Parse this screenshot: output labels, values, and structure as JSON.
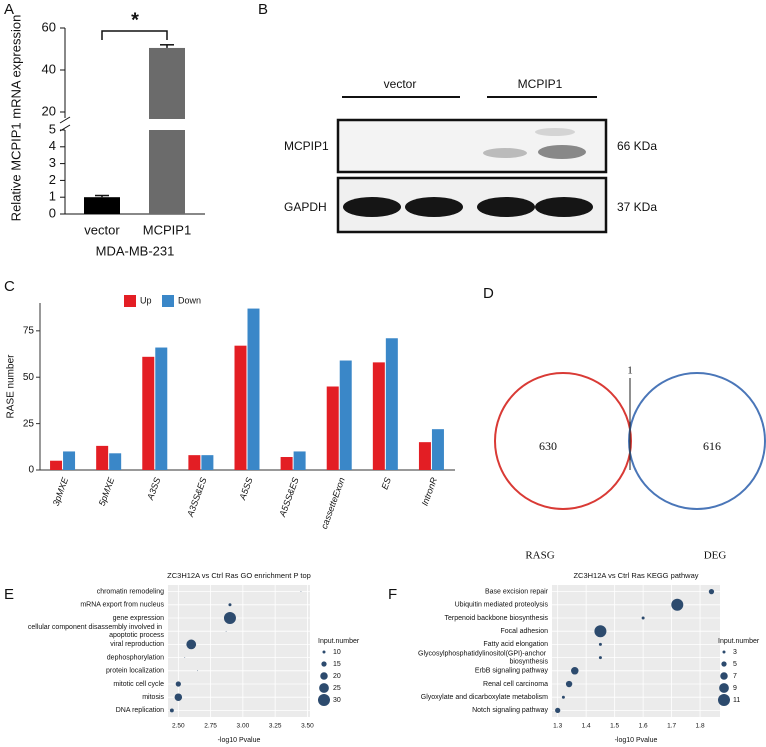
{
  "panel_labels": [
    "A",
    "B",
    "C",
    "D",
    "E",
    "F"
  ],
  "chart_data": [
    {
      "type": "bar",
      "ylabel": "Relative MCPIP1 mRNA expression",
      "xlabel": "MDA-MB-231",
      "categories": [
        "vector",
        "MCPIP1"
      ],
      "values": [
        1,
        50.5
      ],
      "errors": [
        0.1,
        1.5
      ],
      "colors": [
        "#000000",
        "#6b6b6b"
      ],
      "ylim": [
        0,
        60
      ],
      "axis_break": [
        5,
        20
      ],
      "yticks": [
        0,
        1,
        2,
        3,
        4,
        5,
        20,
        40,
        60
      ],
      "annotation": "*"
    },
    {
      "type": "grouped_bar",
      "ylabel": "RASE number",
      "categories": [
        "3pMXE",
        "5pMXE",
        "A3SS",
        "A3SS&ES",
        "A5SS",
        "A5SS&ES",
        "cassetteExon",
        "ES",
        "IntronR"
      ],
      "series": [
        {
          "name": "Up",
          "color": "#e31e24",
          "values": [
            5,
            13,
            61,
            8,
            67,
            7,
            45,
            58,
            15
          ]
        },
        {
          "name": "Down",
          "color": "#3a87c8",
          "values": [
            10,
            9,
            66,
            8,
            87,
            10,
            59,
            71,
            22
          ]
        }
      ],
      "ylim": [
        0,
        90
      ],
      "yticks": [
        0,
        25,
        50,
        75
      ]
    },
    {
      "type": "venn",
      "sets": [
        {
          "name": "RASG",
          "color": "#d93a35",
          "value": 630
        },
        {
          "name": "DEG",
          "color": "#4a76b8",
          "value": 616
        }
      ],
      "overlap": 1
    },
    {
      "type": "bubble",
      "title": "ZC3H12A vs Ctrl Ras GO enrichment P top",
      "xlabel": "-log10 Pvalue",
      "categories": [
        "chromatin remodeling",
        "mRNA export from nucleus",
        "gene expression",
        "cellular component disassembly involved in apoptotic process",
        "viral reproduction",
        "dephosphorylation",
        "protein localization",
        "mitotic cell cycle",
        "mitosis",
        "DNA replication"
      ],
      "x": [
        3.45,
        2.9,
        2.9,
        2.87,
        2.6,
        2.55,
        2.65,
        2.5,
        2.5,
        2.45
      ],
      "sizes": [
        5,
        10,
        30,
        5,
        25,
        5,
        5,
        15,
        20,
        12
      ],
      "label_colors": [
        "#333333",
        "#333333",
        "#333333",
        "#333333",
        "#333333",
        "#333333",
        "#333333",
        "#8b2a8b",
        "#8b2a8b",
        "#8b2a8b"
      ],
      "color": "#2d4b6e",
      "xlim": [
        2.42,
        3.52
      ],
      "xticks": [
        {
          "value": 2.5,
          "label": "2.50"
        },
        {
          "value": 2.75,
          "label": "2.75"
        },
        {
          "value": 3,
          "label": "3.00"
        },
        {
          "value": 3.25,
          "label": "3.25"
        },
        {
          "value": 3.5,
          "label": "3.50"
        }
      ],
      "size_legend_title": "Input.number",
      "size_legend": [
        10,
        15,
        20,
        25,
        30
      ],
      "grid": true
    },
    {
      "type": "bubble",
      "title": "ZC3H12A vs Ctrl Ras KEGG pathway",
      "xlabel": "-log10 Pvalue",
      "categories": [
        "Base excision repair",
        "Ubiquitin mediated proteolysis",
        "Terpenoid backbone biosynthesis",
        "Focal adhesion",
        "Fatty acid elongation",
        "Glycosylphosphatidylinositol(GPI)-anchor biosynthesis",
        "ErbB signaling pathway",
        "Renal cell carcinoma",
        "Glyoxylate and dicarboxylate metabolism",
        "Notch signaling pathway"
      ],
      "x": [
        1.84,
        1.72,
        1.6,
        1.45,
        1.45,
        1.45,
        1.36,
        1.34,
        1.32,
        1.3
      ],
      "sizes": [
        5,
        11,
        3,
        11,
        3,
        3,
        7,
        6,
        3,
        5
      ],
      "label_colors": [
        "#333333",
        "#333333",
        "#333333",
        "#333333",
        "#333333",
        "#333333",
        "#333333",
        "#333333",
        "#333333",
        "#333333"
      ],
      "color": "#2d4b6e",
      "xlim": [
        1.28,
        1.87
      ],
      "xticks": [
        1.3,
        1.4,
        1.5,
        1.6,
        1.7,
        1.8
      ],
      "size_legend_title": "Input.number",
      "size_legend": [
        3,
        5,
        7,
        9,
        11
      ],
      "grid": true
    }
  ],
  "blot": {
    "lanes": [
      "vector",
      "MCPIP1"
    ],
    "rows": [
      {
        "name": "MCPIP1",
        "size": "66 KDa"
      },
      {
        "name": "GAPDH",
        "size": "37 KDa"
      }
    ]
  }
}
